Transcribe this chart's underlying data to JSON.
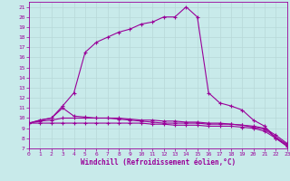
{
  "bg_color": "#c8eaea",
  "grid_color": "#b8d8d8",
  "line_color": "#990099",
  "xlabel": "Windchill (Refroidissement éolien,°C)",
  "xlim": [
    0,
    23
  ],
  "ylim": [
    7,
    21.5
  ],
  "xticks": [
    0,
    1,
    2,
    3,
    4,
    5,
    6,
    7,
    8,
    9,
    10,
    11,
    12,
    13,
    14,
    15,
    16,
    17,
    18,
    19,
    20,
    21,
    22,
    23
  ],
  "yticks": [
    7,
    8,
    9,
    10,
    11,
    12,
    13,
    14,
    15,
    16,
    17,
    18,
    19,
    20,
    21
  ],
  "curve_x": [
    0,
    1,
    2,
    3,
    4,
    5,
    6,
    7,
    8,
    9,
    10,
    11,
    12,
    13,
    14,
    15,
    16,
    17,
    18,
    19,
    20,
    21,
    22,
    23
  ],
  "curve_y": [
    9.5,
    9.8,
    10.0,
    11.2,
    12.5,
    16.5,
    17.5,
    18.0,
    18.5,
    18.8,
    19.3,
    19.5,
    20.0,
    20.0,
    21.0,
    20.0,
    12.5,
    11.5,
    11.2,
    10.8,
    9.8,
    9.2,
    8.0,
    7.2
  ],
  "line1_x": [
    0,
    1,
    2,
    3,
    4,
    5,
    6,
    7,
    8,
    9,
    10,
    11,
    12,
    13,
    14,
    15,
    16,
    17,
    18,
    19,
    20,
    21,
    22,
    23
  ],
  "line1_y": [
    9.5,
    9.8,
    10.0,
    11.0,
    10.2,
    10.1,
    10.0,
    10.0,
    10.0,
    9.9,
    9.8,
    9.8,
    9.7,
    9.7,
    9.6,
    9.6,
    9.5,
    9.5,
    9.4,
    9.3,
    9.2,
    9.0,
    8.3,
    7.5
  ],
  "line2_x": [
    0,
    1,
    2,
    3,
    4,
    5,
    6,
    7,
    8,
    9,
    10,
    11,
    12,
    13,
    14,
    15,
    16,
    17,
    18,
    19,
    20,
    21,
    22,
    23
  ],
  "line2_y": [
    9.5,
    9.7,
    9.8,
    10.0,
    10.0,
    10.0,
    10.0,
    10.0,
    9.9,
    9.8,
    9.7,
    9.6,
    9.5,
    9.5,
    9.5,
    9.5,
    9.4,
    9.4,
    9.4,
    9.3,
    9.1,
    8.9,
    8.1,
    7.4
  ],
  "line3_x": [
    0,
    1,
    2,
    3,
    4,
    5,
    6,
    7,
    8,
    9,
    10,
    11,
    12,
    13,
    14,
    15,
    16,
    17,
    18,
    19,
    20,
    21,
    22,
    23
  ],
  "line3_y": [
    9.5,
    9.5,
    9.5,
    9.5,
    9.5,
    9.5,
    9.5,
    9.5,
    9.5,
    9.5,
    9.5,
    9.4,
    9.4,
    9.3,
    9.3,
    9.3,
    9.2,
    9.2,
    9.2,
    9.1,
    9.0,
    8.7,
    8.0,
    7.3
  ]
}
